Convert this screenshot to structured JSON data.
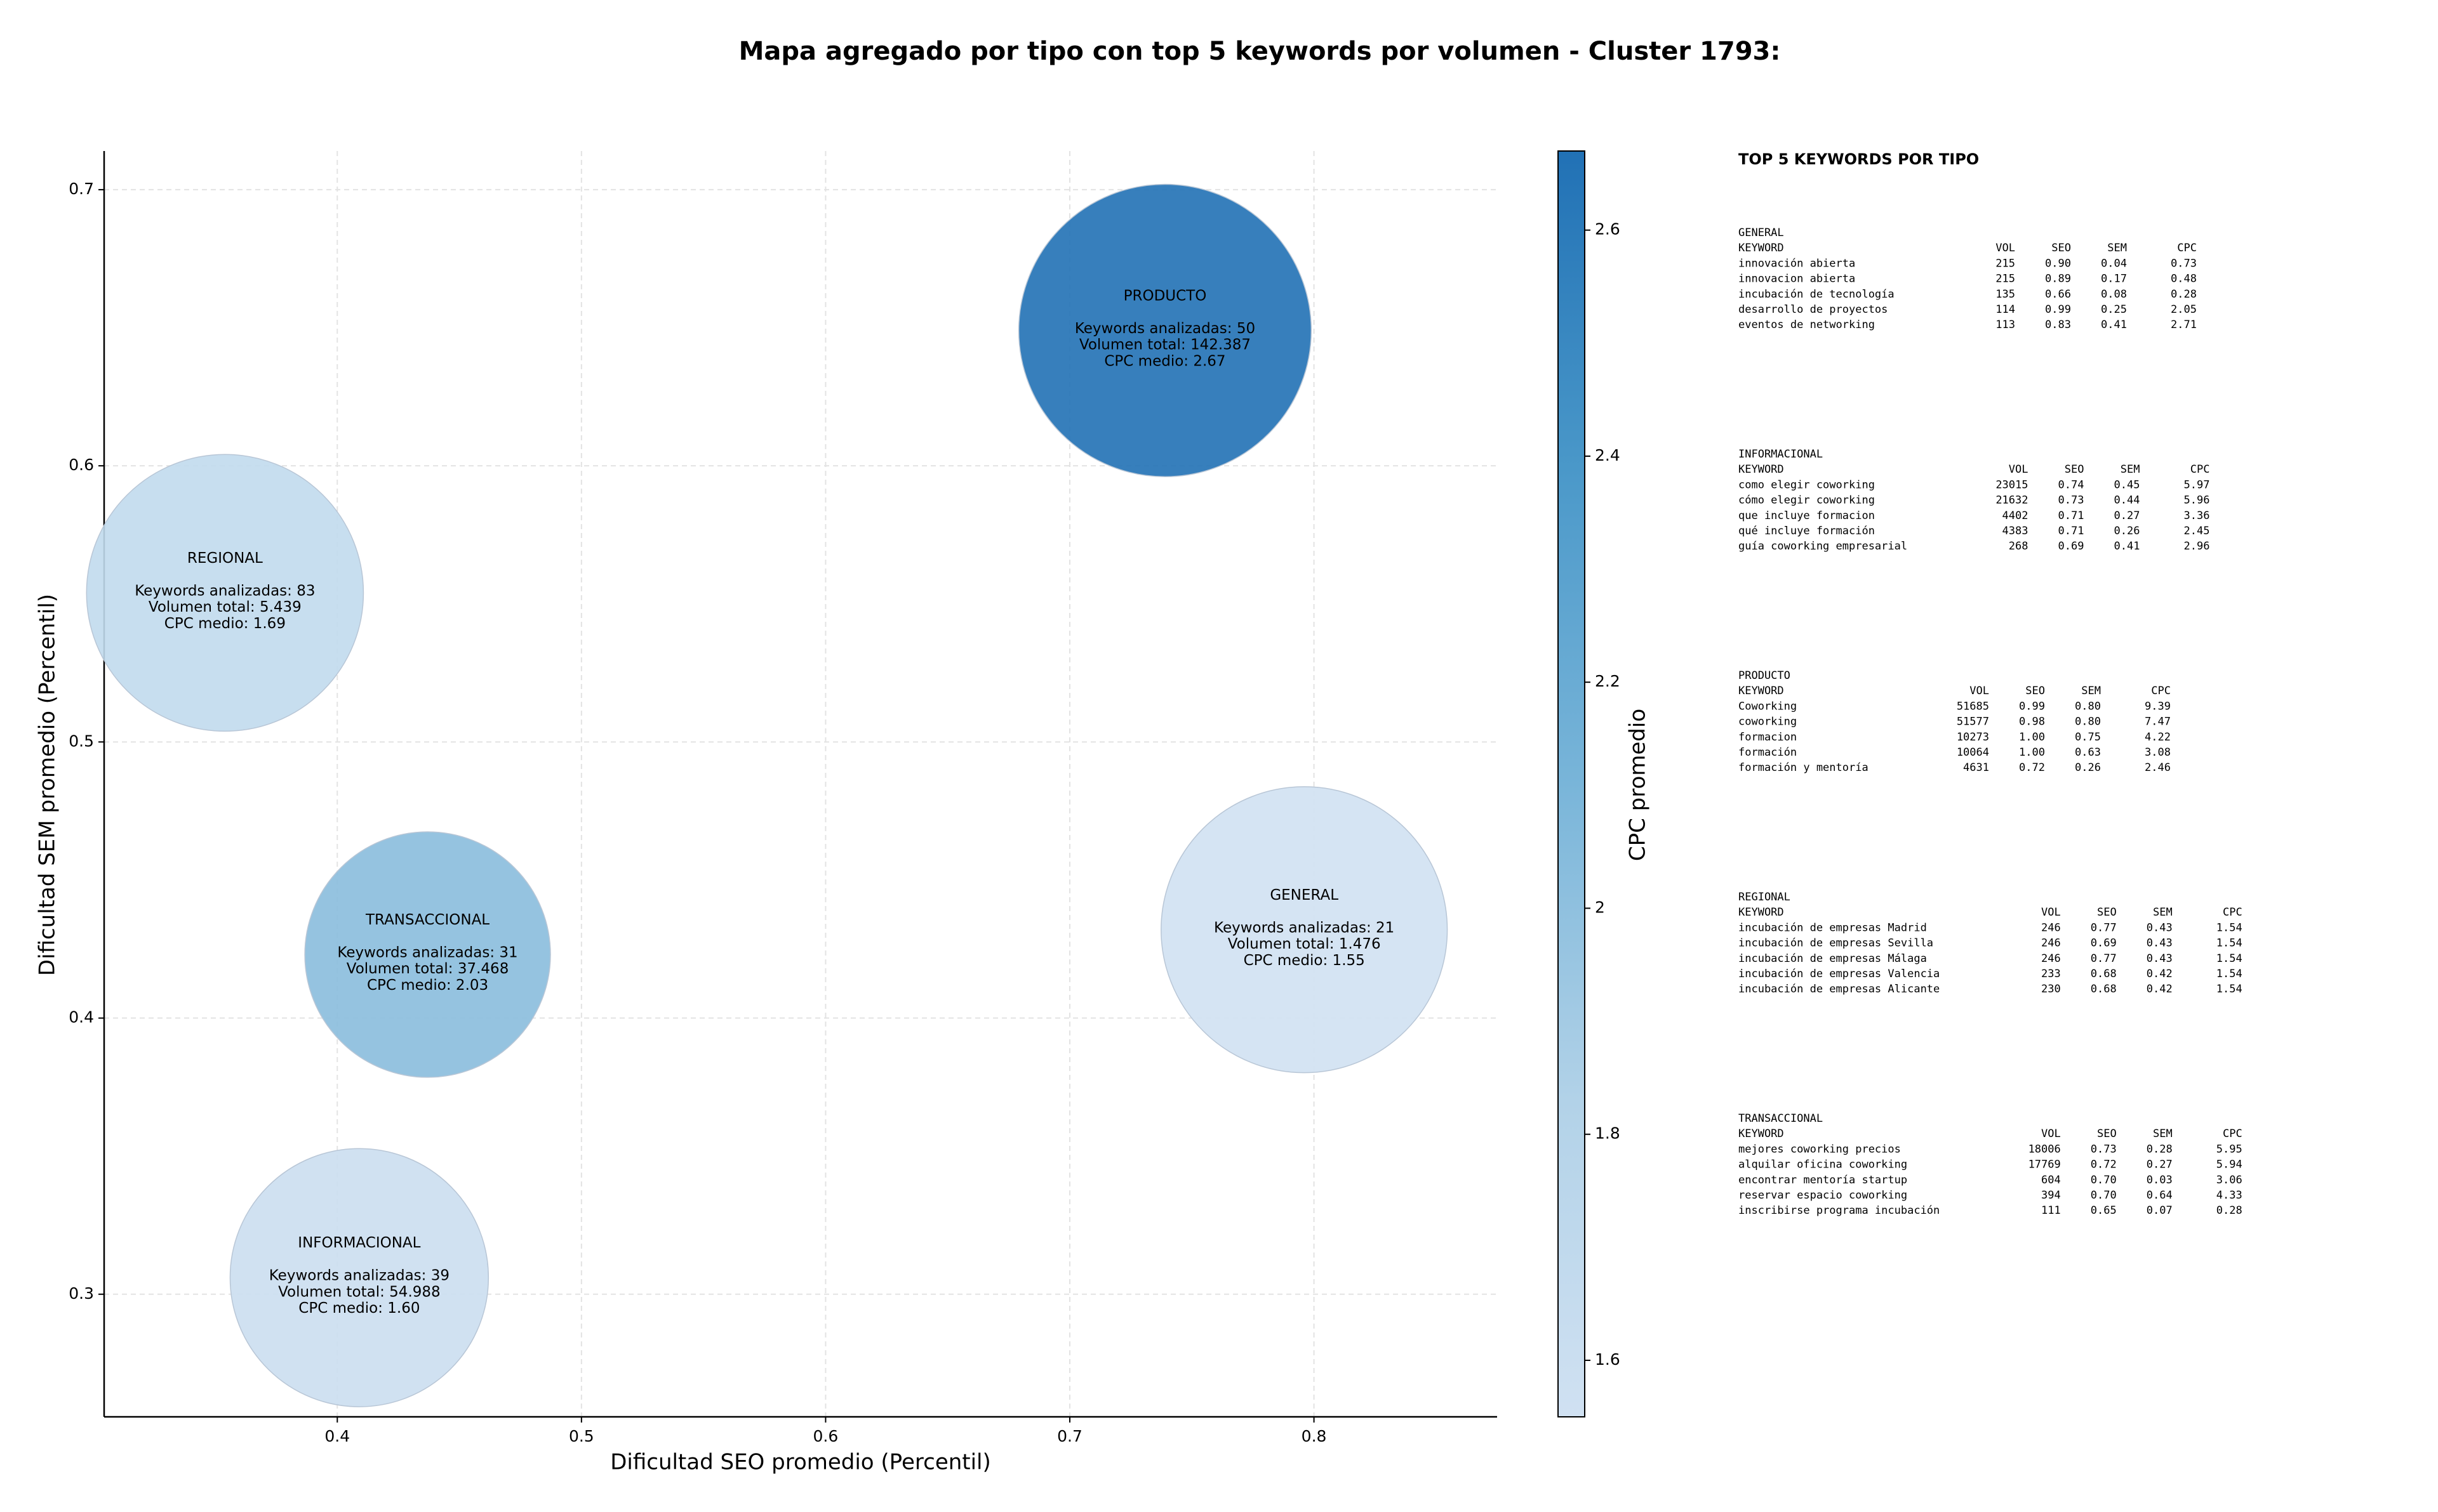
{
  "chart_data": {
    "type": "bubble",
    "title": "Mapa agregado por tipo con top 5 keywords por volumen - Cluster 1793:",
    "xlabel": "Dificultad SEO promedio (Percentil)",
    "ylabel": "Dificultad SEM promedio (Percentil)",
    "xlim": [
      0.3045,
      0.875
    ],
    "ylim": [
      0.2556,
      0.714
    ],
    "xticks": [
      0.4,
      0.5,
      0.6,
      0.7,
      0.8
    ],
    "yticks": [
      0.3,
      0.4,
      0.5,
      0.6,
      0.7
    ],
    "grid": true,
    "colormap": [
      "#d0e1f2",
      "#b2d2e8",
      "#79b5d9",
      "#4a98c9",
      "#2171b5"
    ],
    "colorbar": {
      "label": "CPC promedio",
      "lim": [
        1.55,
        2.67
      ],
      "ticks": [
        1.6,
        1.8,
        2.0,
        2.2,
        2.4,
        2.6
      ]
    },
    "points": [
      {
        "name": "PRODUCTO",
        "x": 0.739,
        "y": 0.649,
        "r": 0.0599,
        "cpc": 2.67,
        "lines": [
          "Keywords analizadas: 50",
          "Volumen total: 142.387",
          "CPC medio: 2.67"
        ]
      },
      {
        "name": "REGIONAL",
        "x": 0.354,
        "y": 0.554,
        "r": 0.0567,
        "cpc": 1.69,
        "lines": [
          "Keywords analizadas: 83",
          "Volumen total: 5.439",
          "CPC medio: 1.69"
        ]
      },
      {
        "name": "TRANSACCIONAL",
        "x": 0.437,
        "y": 0.423,
        "r": 0.0503,
        "cpc": 2.03,
        "lines": [
          "Keywords analizadas: 31",
          "Volumen total: 37.468",
          "CPC medio: 2.03"
        ]
      },
      {
        "name": "GENERAL",
        "x": 0.796,
        "y": 0.432,
        "r": 0.0586,
        "cpc": 1.55,
        "lines": [
          "Keywords analizadas: 21",
          "Volumen total: 1.476",
          "CPC medio: 1.55"
        ]
      },
      {
        "name": "INFORMACIONAL",
        "x": 0.409,
        "y": 0.306,
        "r": 0.0529,
        "cpc": 1.6,
        "lines": [
          "Keywords analizadas: 39",
          "Volumen total: 54.988",
          "CPC medio: 1.60"
        ]
      }
    ]
  },
  "panel": {
    "title": "TOP 5 KEYWORDS POR TIPO",
    "columns": [
      "KEYWORD",
      "VOL",
      "SEO",
      "SEM",
      "CPC"
    ],
    "groups": [
      {
        "name": "GENERAL",
        "rows": [
          [
            "innovación abierta",
            "215",
            "0.90",
            "0.04",
            "0.73"
          ],
          [
            "innovacion abierta",
            "215",
            "0.89",
            "0.17",
            "0.48"
          ],
          [
            "incubación de tecnología",
            "135",
            "0.66",
            "0.08",
            "0.28"
          ],
          [
            "desarrollo de proyectos",
            "114",
            "0.99",
            "0.25",
            "2.05"
          ],
          [
            "eventos de networking",
            "113",
            "0.83",
            "0.41",
            "2.71"
          ]
        ]
      },
      {
        "name": "INFORMACIONAL",
        "rows": [
          [
            "como elegir coworking",
            "23015",
            "0.74",
            "0.45",
            "5.97"
          ],
          [
            "cómo elegir coworking",
            "21632",
            "0.73",
            "0.44",
            "5.96"
          ],
          [
            "que incluye formacion",
            "4402",
            "0.71",
            "0.27",
            "3.36"
          ],
          [
            "qué incluye formación",
            "4383",
            "0.71",
            "0.26",
            "2.45"
          ],
          [
            "guía coworking empresarial",
            "268",
            "0.69",
            "0.41",
            "2.96"
          ]
        ]
      },
      {
        "name": "PRODUCTO",
        "rows": [
          [
            "Coworking",
            "51685",
            "0.99",
            "0.80",
            "9.39"
          ],
          [
            "coworking",
            "51577",
            "0.98",
            "0.80",
            "7.47"
          ],
          [
            "formacion",
            "10273",
            "1.00",
            "0.75",
            "4.22"
          ],
          [
            "formación",
            "10064",
            "1.00",
            "0.63",
            "3.08"
          ],
          [
            "formación y mentoría",
            "4631",
            "0.72",
            "0.26",
            "2.46"
          ]
        ]
      },
      {
        "name": "REGIONAL",
        "rows": [
          [
            "incubación de empresas Madrid",
            "246",
            "0.77",
            "0.43",
            "1.54"
          ],
          [
            "incubación de empresas Sevilla",
            "246",
            "0.69",
            "0.43",
            "1.54"
          ],
          [
            "incubación de empresas Málaga",
            "246",
            "0.77",
            "0.43",
            "1.54"
          ],
          [
            "incubación de empresas Valencia",
            "233",
            "0.68",
            "0.42",
            "1.54"
          ],
          [
            "incubación de empresas Alicante",
            "230",
            "0.68",
            "0.42",
            "1.54"
          ]
        ]
      },
      {
        "name": "TRANSACCIONAL",
        "rows": [
          [
            "mejores coworking precios",
            "18006",
            "0.73",
            "0.28",
            "5.95"
          ],
          [
            "alquilar oficina coworking",
            "17769",
            "0.72",
            "0.27",
            "5.94"
          ],
          [
            "encontrar mentoría startup",
            "604",
            "0.70",
            "0.03",
            "3.06"
          ],
          [
            "reservar espacio coworking",
            "394",
            "0.70",
            "0.64",
            "4.33"
          ],
          [
            "inscribirse programa incubación",
            "111",
            "0.65",
            "0.07",
            "0.28"
          ]
        ]
      }
    ]
  }
}
